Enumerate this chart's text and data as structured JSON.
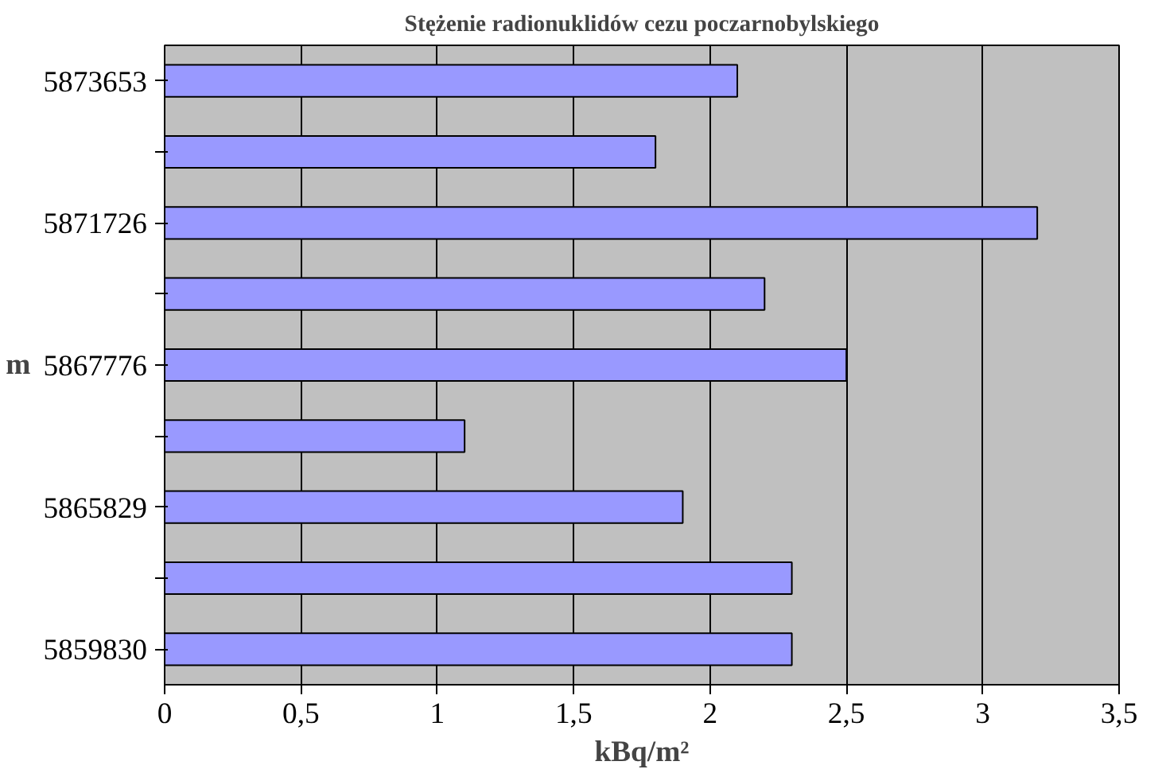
{
  "chart_data": {
    "type": "bar",
    "orientation": "horizontal",
    "title": "Stężenie radionuklidów cezu poczarnobylskiego",
    "xlabel": "kBq/m²",
    "ylabel": "m",
    "categories": [
      "5873653",
      null,
      "5871726",
      null,
      "5867776",
      null,
      "5865829",
      null,
      "5859830"
    ],
    "values": [
      2.1,
      1.8,
      3.2,
      2.2,
      2.5,
      1.1,
      1.9,
      2.3,
      2.3
    ],
    "color": "#9999ff",
    "xlim": [
      0,
      3.5
    ],
    "xticks": [
      0,
      {
        "value": 0.5,
        "label": "0,5"
      },
      1,
      {
        "value": 1.5,
        "label": "1,5"
      },
      2,
      {
        "value": 2.5,
        "label": "2,5"
      },
      3,
      {
        "value": 3.5,
        "label": "3,5"
      }
    ],
    "grid": "x"
  }
}
